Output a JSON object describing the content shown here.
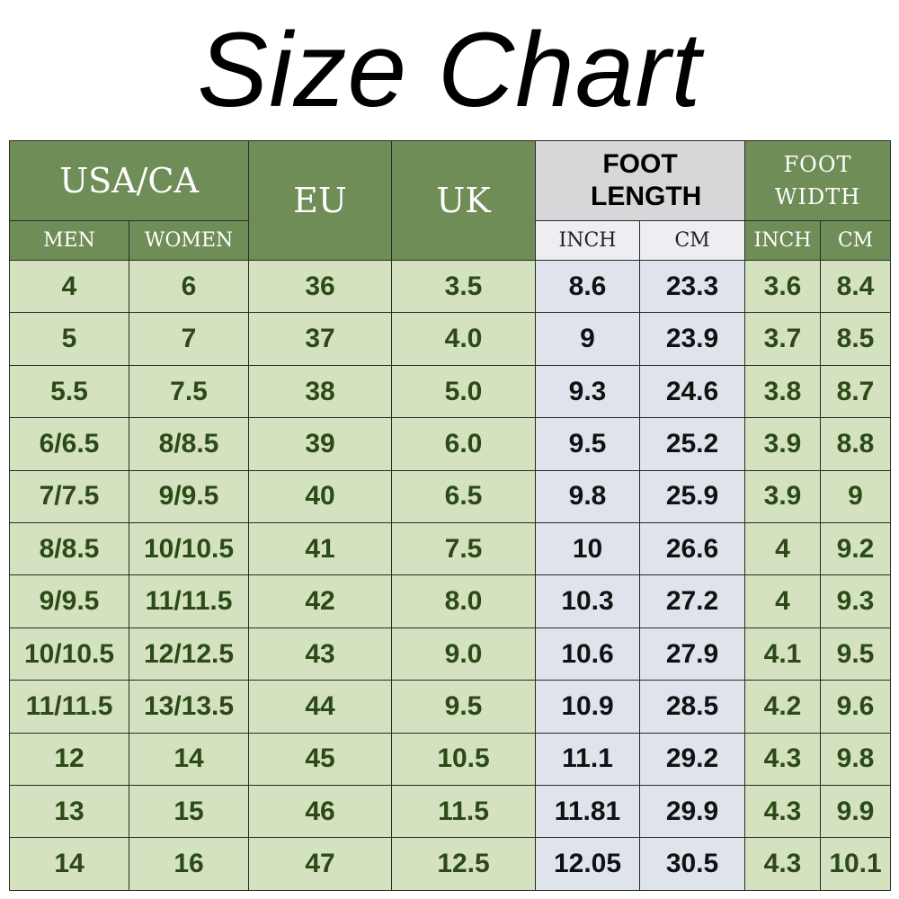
{
  "title": "Size Chart",
  "chart_data": {
    "type": "table",
    "header": {
      "usa_ca": "USA/CA",
      "men": "MEN",
      "women": "WOMEN",
      "eu": "EU",
      "uk": "UK",
      "foot_length": "FOOT LENGTH",
      "foot_width": "FOOT WIDTH",
      "inch": "INCH",
      "cm": "CM"
    },
    "columns": [
      "MEN",
      "WOMEN",
      "EU",
      "UK",
      "INCH",
      "CM",
      "INCH",
      "CM"
    ],
    "rows": [
      [
        "4",
        "6",
        "36",
        "3.5",
        "8.6",
        "23.3",
        "3.6",
        "8.4"
      ],
      [
        "5",
        "7",
        "37",
        "4.0",
        "9",
        "23.9",
        "3.7",
        "8.5"
      ],
      [
        "5.5",
        "7.5",
        "38",
        "5.0",
        "9.3",
        "24.6",
        "3.8",
        "8.7"
      ],
      [
        "6/6.5",
        "8/8.5",
        "39",
        "6.0",
        "9.5",
        "25.2",
        "3.9",
        "8.8"
      ],
      [
        "7/7.5",
        "9/9.5",
        "40",
        "6.5",
        "9.8",
        "25.9",
        "3.9",
        "9"
      ],
      [
        "8/8.5",
        "10/10.5",
        "41",
        "7.5",
        "10",
        "26.6",
        "4",
        "9.2"
      ],
      [
        "9/9.5",
        "11/11.5",
        "42",
        "8.0",
        "10.3",
        "27.2",
        "4",
        "9.3"
      ],
      [
        "10/10.5",
        "12/12.5",
        "43",
        "9.0",
        "10.6",
        "27.9",
        "4.1",
        "9.5"
      ],
      [
        "11/11.5",
        "13/13.5",
        "44",
        "9.5",
        "10.9",
        "28.5",
        "4.2",
        "9.6"
      ],
      [
        "12",
        "14",
        "45",
        "10.5",
        "11.1",
        "29.2",
        "4.3",
        "9.8"
      ],
      [
        "13",
        "15",
        "46",
        "11.5",
        "11.81",
        "29.9",
        "4.3",
        "9.9"
      ],
      [
        "14",
        "16",
        "47",
        "12.5",
        "12.05",
        "30.5",
        "4.3",
        "10.1"
      ]
    ]
  },
  "colors": {
    "header_green": "#6f8d57",
    "header_grey": "#d7d6d9",
    "cell_green": "#d5e2bf",
    "cell_blue": "#dfe3ec",
    "text_green": "#2c4a17"
  }
}
